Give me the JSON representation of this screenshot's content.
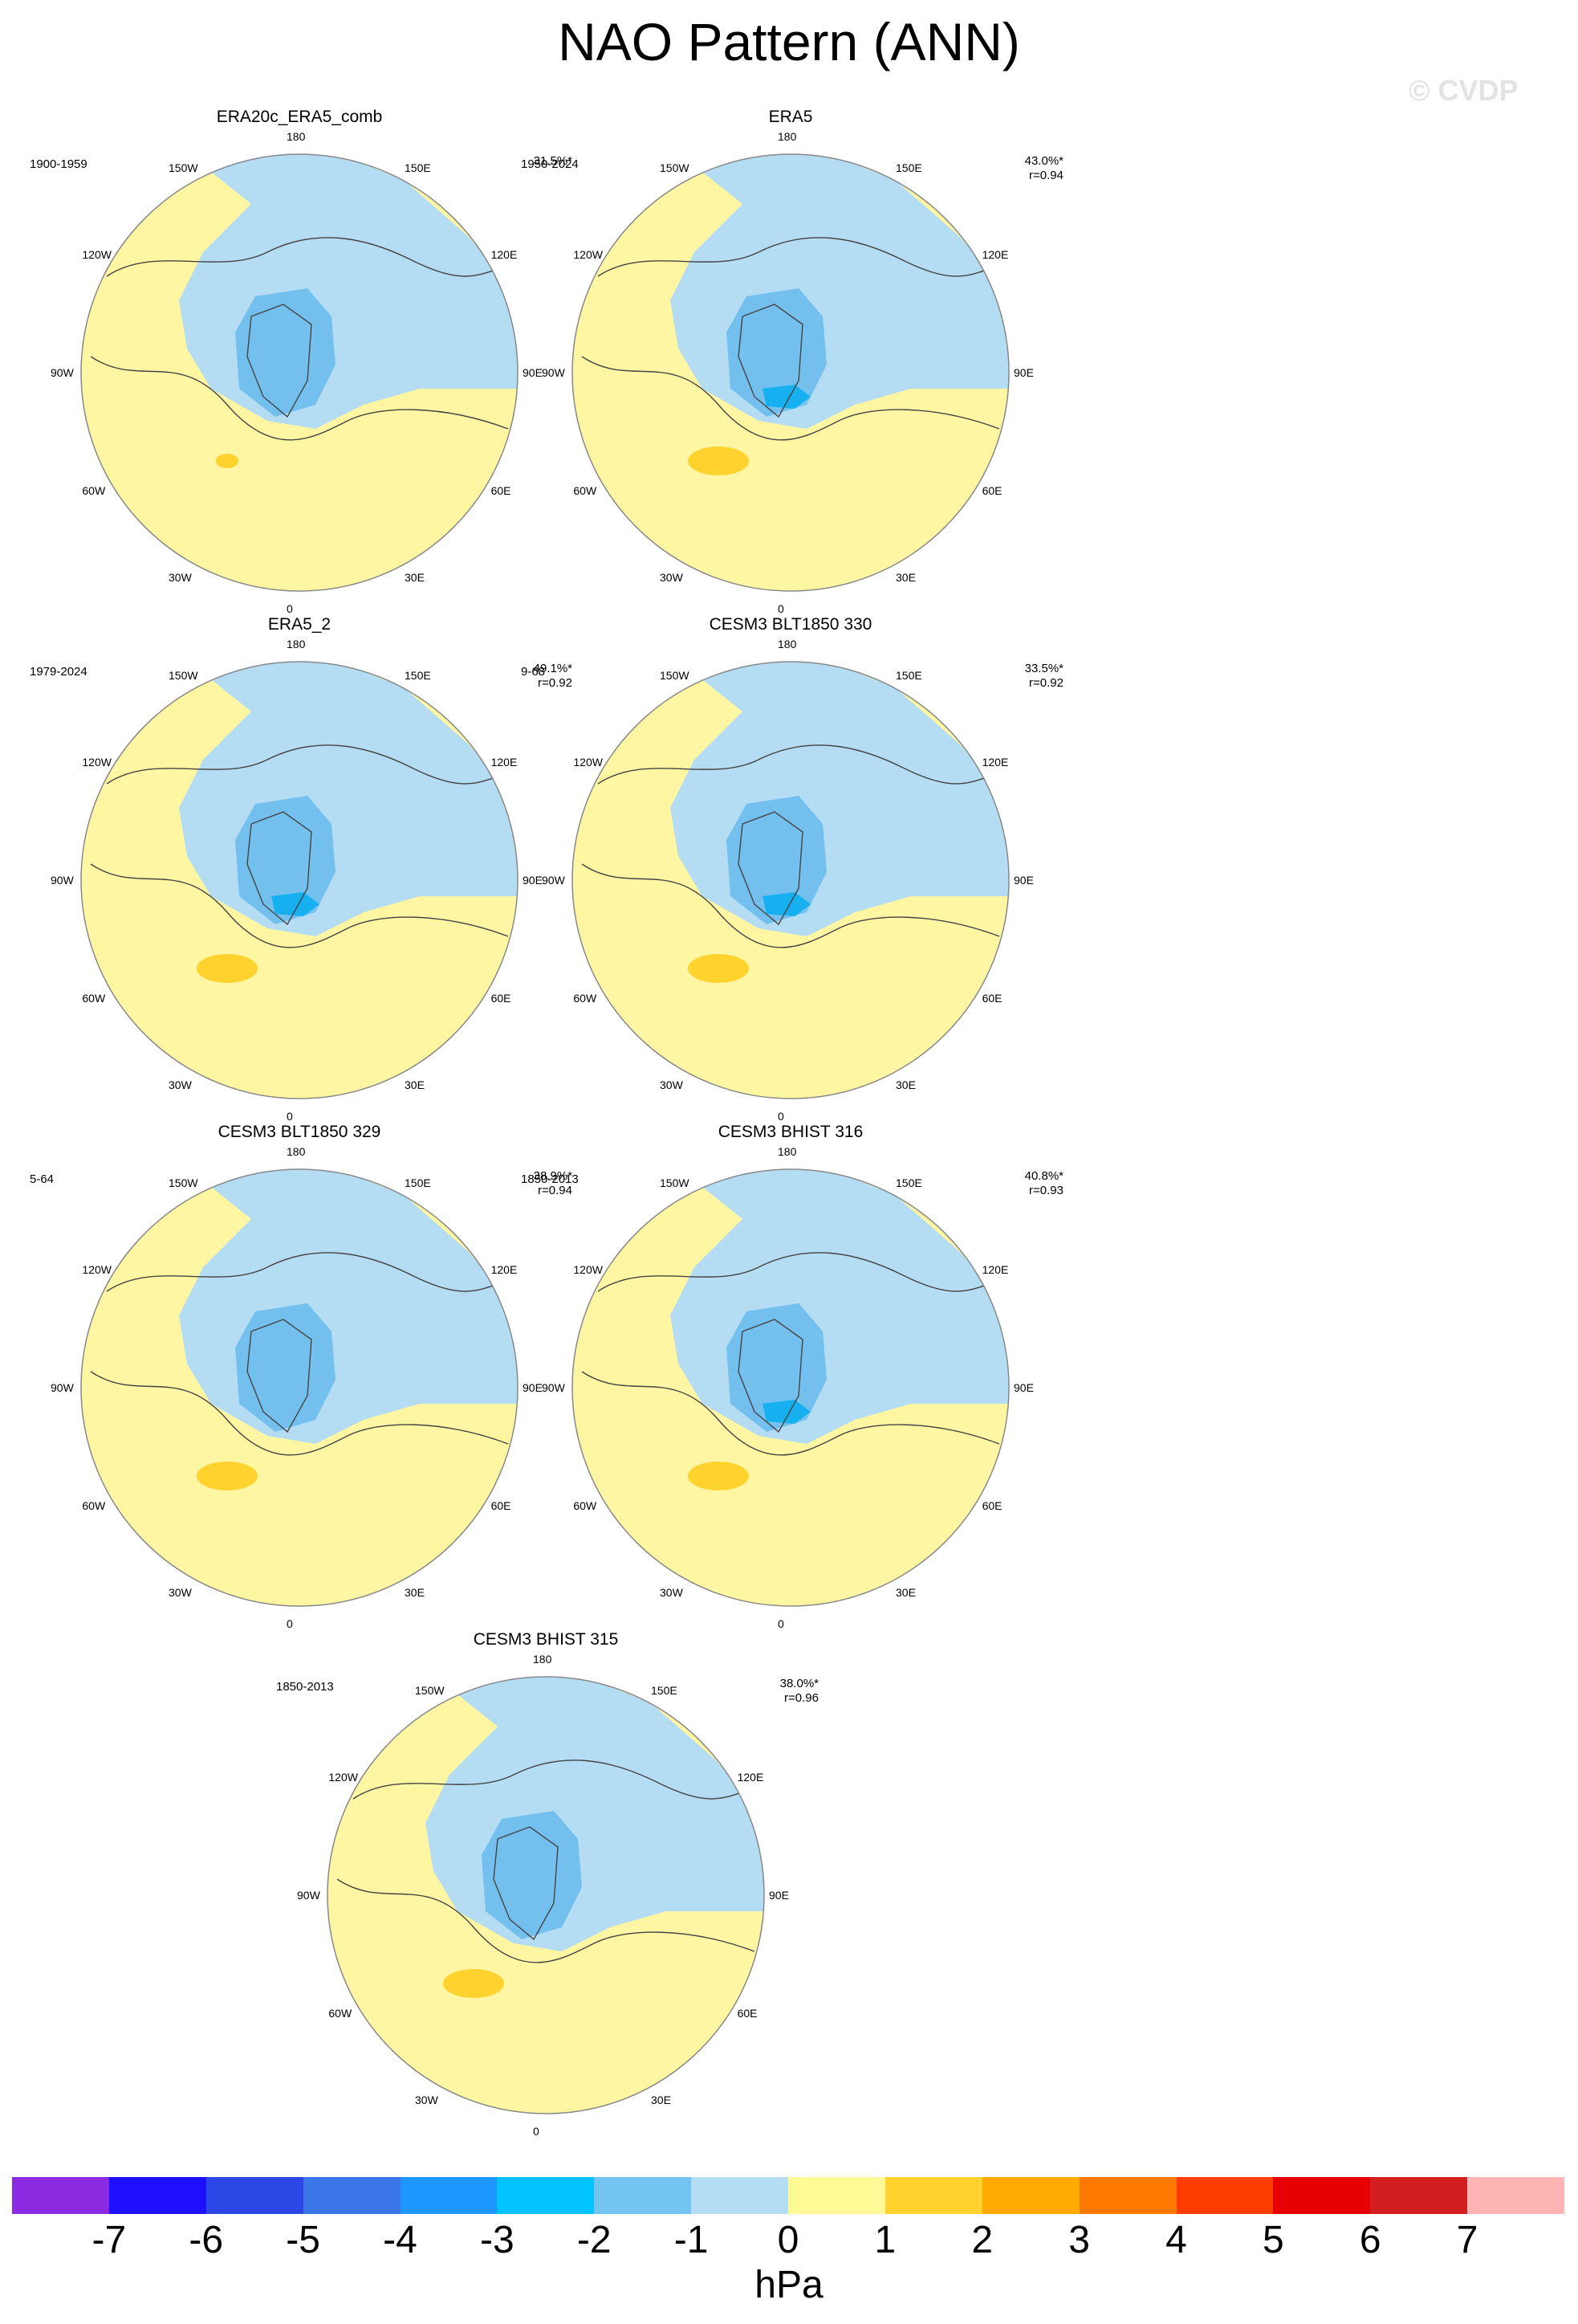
{
  "figure": {
    "title": "NAO Pattern (ANN)",
    "copyright": "© CVDP",
    "units": "hPa"
  },
  "lon_labels": [
    "180",
    "150E",
    "120E",
    "90E",
    "60E",
    "30E",
    "0",
    "30W",
    "60W",
    "90W",
    "120W",
    "150W"
  ],
  "panels": [
    {
      "title": "ERA20c_ERA5_comb",
      "period": "1900-1959",
      "pct": "31.5%*",
      "r": ""
    },
    {
      "title": "ERA5",
      "period": "1950-2024",
      "pct": "43.0%*",
      "r": "r=0.94"
    },
    {
      "title": "ERA5_2",
      "period": "1979-2024",
      "pct": "49.1%*",
      "r": "r=0.92"
    },
    {
      "title": "CESM3 BLT1850 330",
      "period": "9-68",
      "pct": "33.5%*",
      "r": "r=0.92"
    },
    {
      "title": "CESM3 BLT1850 329",
      "period": "5-64",
      "pct": "38.9%*",
      "r": "r=0.94"
    },
    {
      "title": "CESM3 BHIST 316",
      "period": "1850-2013",
      "pct": "40.8%*",
      "r": "r=0.93"
    },
    {
      "title": "CESM3 BHIST 315",
      "period": "1850-2013",
      "pct": "38.0%*",
      "r": "r=0.96"
    }
  ],
  "colorbar": {
    "labels": [
      "-7",
      "-6",
      "-5",
      "-4",
      "-3",
      "-2",
      "-1",
      "0",
      "1",
      "2",
      "3",
      "4",
      "5",
      "6",
      "7"
    ],
    "colors": [
      "#8a2be2",
      "#1e10ff",
      "#2d46e6",
      "#3a76e8",
      "#1e96ff",
      "#00c3ff",
      "#73c4f0",
      "#b4dcf2",
      "#fffa96",
      "#ffd22d",
      "#ffaa00",
      "#ff7800",
      "#ff3c00",
      "#e60000",
      "#d21e1e",
      "#ffb4b4"
    ]
  },
  "palette": {
    "yellow": "#fff6a3",
    "light_blue": "#b4dcf2",
    "mid_blue": "#73c0ee",
    "deep_blue": "#16b0f0",
    "orange": "#ffd22d"
  }
}
